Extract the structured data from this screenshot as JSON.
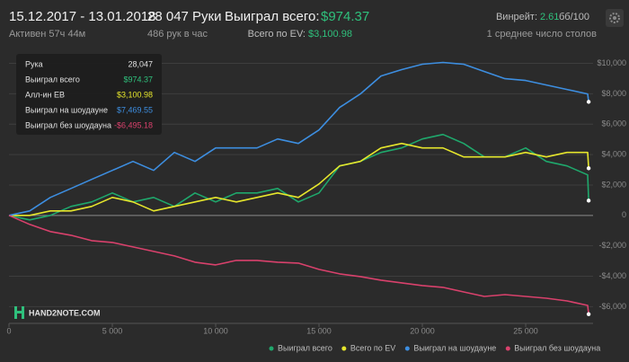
{
  "header": {
    "date_range": "15.12.2017 - 13.01.2018",
    "active": "Активен 57ч 44м",
    "hands": "28 047 Руки",
    "hands_per_hour": "486 рук в час",
    "won_label": "Выиграл всего:",
    "won_value": "$974.37",
    "ev_label": "Всего по EV:",
    "ev_value": "$3,100.98",
    "winrate_label": "Винрейт:",
    "winrate_value": "2.61",
    "winrate_unit": "бб/100",
    "tables": "1 среднее число столов"
  },
  "tooltip": {
    "rows": [
      [
        "Рука",
        "28,047"
      ],
      [
        "Выиграл всего",
        "$974.37"
      ],
      [
        "Алл-ин EB",
        "$3,100.98"
      ],
      [
        "Выиграл на шоудауне",
        "$7,469.55"
      ],
      [
        "Выиграл без шоудауна",
        "-$6,495.18"
      ]
    ]
  },
  "watermark": "HAND2NOTE.COM",
  "chart_data": {
    "type": "line",
    "x": [
      0,
      1000,
      2000,
      3000,
      4000,
      5000,
      6000,
      7000,
      8000,
      9000,
      10000,
      11000,
      12000,
      13000,
      14000,
      15000,
      16000,
      17000,
      18000,
      19000,
      20000,
      21000,
      22000,
      23000,
      24000,
      25000,
      26000,
      27000,
      28000,
      28047
    ],
    "series": [
      {
        "name": "Выиграл всего",
        "color": "#1fa86c",
        "values": [
          0,
          -296,
          0,
          592,
          888,
          1479,
          888,
          1183,
          592,
          1479,
          888,
          1479,
          1479,
          1775,
          888,
          1479,
          3254,
          3550,
          4142,
          4438,
          5030,
          5325,
          4734,
          3846,
          3846,
          4438,
          3550,
          3254,
          2663,
          974
        ]
      },
      {
        "name": "Всего по EV",
        "color": "#e6e62c",
        "values": [
          0,
          0,
          296,
          296,
          592,
          1183,
          888,
          296,
          592,
          888,
          1183,
          888,
          1183,
          1479,
          1183,
          2071,
          3254,
          3550,
          4438,
          4734,
          4438,
          4438,
          3846,
          3846,
          3846,
          4142,
          3846,
          4142,
          4142,
          3101
        ]
      },
      {
        "name": "Выиграл на шоудауне",
        "color": "#3d8ee0",
        "values": [
          0,
          296,
          1183,
          1775,
          2367,
          2959,
          3550,
          2959,
          4142,
          3550,
          4438,
          4438,
          4438,
          5030,
          4734,
          5621,
          7101,
          7988,
          9172,
          9586,
          9941,
          10059,
          9941,
          9467,
          8994,
          8876,
          8580,
          8284,
          7988,
          7470
        ]
      },
      {
        "name": "Выиграл без шоудауна",
        "color": "#d9416c",
        "values": [
          0,
          -592,
          -1065,
          -1302,
          -1657,
          -1775,
          -2071,
          -2367,
          -2663,
          -3077,
          -3254,
          -2959,
          -2959,
          -3077,
          -3136,
          -3550,
          -3846,
          -4024,
          -4260,
          -4438,
          -4615,
          -4734,
          -5030,
          -5325,
          -5207,
          -5325,
          -5444,
          -5621,
          -5917,
          -6495
        ]
      }
    ],
    "xlim": [
      0,
      28260
    ],
    "ylim": [
      -7100,
      10800
    ],
    "xticks": [
      0,
      {
        "value": 5000,
        "label": "5 000"
      },
      {
        "value": 10000,
        "label": "10 000"
      },
      {
        "value": 15000,
        "label": "15 000"
      },
      {
        "value": 20000,
        "label": "20 000"
      },
      {
        "value": 25000,
        "label": "25 000"
      }
    ],
    "yticks": [
      {
        "value": -6000,
        "label": "-$6,000"
      },
      {
        "value": -4000,
        "label": "-$4,000"
      },
      {
        "value": -2000,
        "label": "-$2,000"
      },
      0,
      {
        "value": 2000,
        "label": "$2,000"
      },
      {
        "value": 4000,
        "label": "$4,000"
      },
      {
        "value": 6000,
        "label": "$6,000"
      },
      {
        "value": 8000,
        "label": "$8,000"
      },
      {
        "value": 10000,
        "label": "$10,000"
      }
    ],
    "grid": true
  }
}
